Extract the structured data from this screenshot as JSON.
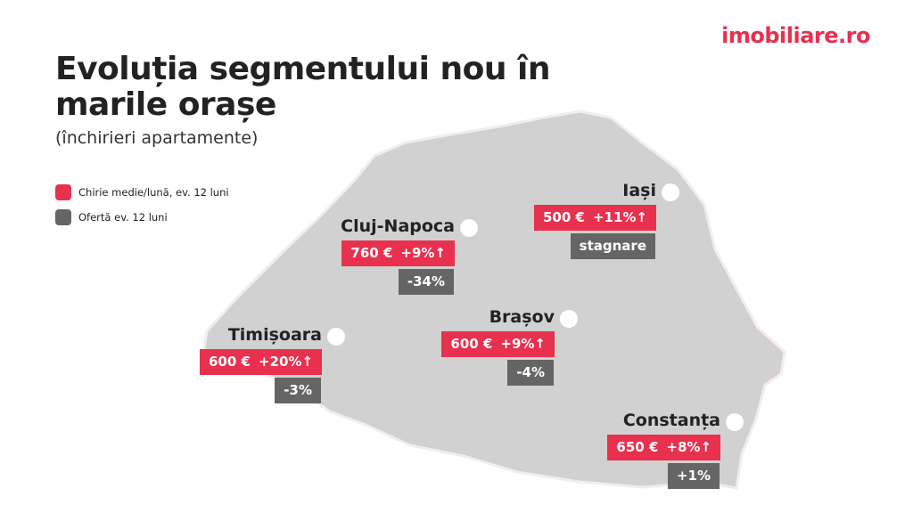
{
  "logo": {
    "text": "imobiliare.ro",
    "color": "#e8304f"
  },
  "title_lines": [
    "Evoluția segmentului nou în",
    "marile orașe"
  ],
  "subtitle": "(închirieri apartamente)",
  "legend": [
    {
      "label": "Chirie medie/lună, ev. 12 luni",
      "color": "#e8304f"
    },
    {
      "label": "Ofertă ev. 12 luni",
      "color": "#656565"
    }
  ],
  "cities": [
    {
      "name": "Iași",
      "rent": "500 €",
      "rent_change": "+11%↑",
      "offer": "stagnare"
    },
    {
      "name": "Cluj-Napoca",
      "rent": "760 €",
      "rent_change": "+9%↑",
      "offer": "-34%"
    },
    {
      "name": "Timișoara",
      "rent": "600 €",
      "rent_change": "+20%↑",
      "offer": "-3%"
    },
    {
      "name": "Brașov",
      "rent": "600 €",
      "rent_change": "+9%↑",
      "offer": "-4%"
    },
    {
      "name": "Constanța",
      "rent": "650 €",
      "rent_change": "+8%↑",
      "offer": "+1%"
    }
  ]
}
